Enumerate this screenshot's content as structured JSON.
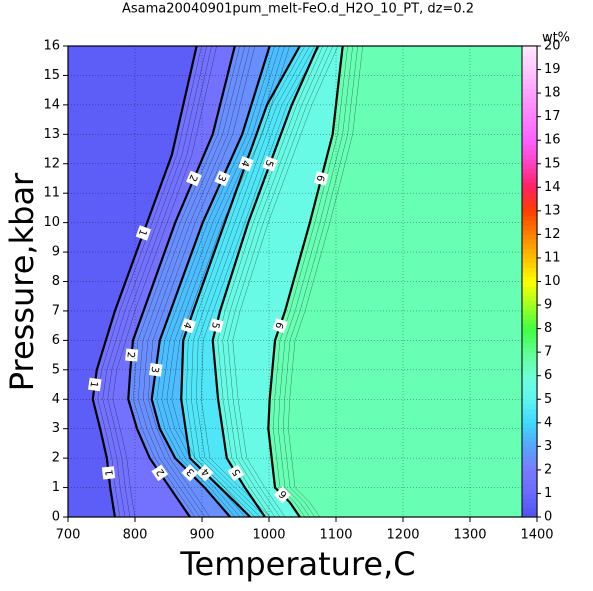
{
  "chart_data": {
    "type": "contour",
    "title": "Asama20040901pum_melt-FeO.d_H2O_10_PT, dz=0.2",
    "x_label": "Temperature,C",
    "y_label": "Pressure,kbar",
    "colorbar_label": "wt%",
    "xlim": [
      700,
      1400
    ],
    "ylim": [
      0,
      16
    ],
    "xticks": [
      700,
      800,
      900,
      1000,
      1100,
      1200,
      1300,
      1400
    ],
    "yticks": [
      0,
      1,
      2,
      3,
      4,
      5,
      6,
      7,
      8,
      9,
      10,
      11,
      12,
      13,
      14,
      15,
      16
    ],
    "zlim": [
      0,
      20
    ],
    "zticks": [
      0,
      1,
      2,
      3,
      4,
      5,
      6,
      7,
      8,
      9,
      10,
      11,
      12,
      13,
      14,
      15,
      16,
      17,
      18,
      19,
      20
    ],
    "colormap": [
      "#5050f0",
      "#6a6aff",
      "#7a7aff",
      "#58a4ff",
      "#40d8ff",
      "#60f4f0",
      "#70ffd8",
      "#60ff90",
      "#40ff40",
      "#a0ff20",
      "#ffff00",
      "#ffc000",
      "#ff8000",
      "#ff4000",
      "#ff2060",
      "#ff40c0",
      "#ff60ff",
      "#ff80ff",
      "#ffa0ff",
      "#ffc8ff",
      "#ffe8ff"
    ],
    "contours": [
      {
        "level": 1,
        "y": [
          16,
          12.3,
          7,
          5,
          4,
          3,
          2,
          1,
          0
        ],
        "x": [
          892,
          855,
          770,
          743,
          737,
          748,
          758,
          763,
          770
        ]
      },
      {
        "level": 2,
        "y": [
          16,
          13,
          10,
          6,
          5,
          4,
          3,
          2,
          1,
          0
        ],
        "x": [
          949,
          916,
          860,
          797,
          793,
          790,
          803,
          822,
          852,
          882
        ]
      },
      {
        "level": 3,
        "y": [
          16,
          13,
          10,
          6,
          4,
          3,
          2,
          1,
          0
        ],
        "x": [
          1001,
          960,
          901,
          837,
          825,
          837,
          860,
          904,
          942
        ]
      },
      {
        "level": 4,
        "y": [
          16,
          14,
          10,
          7,
          6,
          4,
          2,
          1,
          0
        ],
        "x": [
          1046,
          997,
          934,
          887,
          872,
          869,
          882,
          927,
          972
        ]
      },
      {
        "level": 5,
        "y": [
          16,
          14,
          10,
          7,
          6,
          4,
          2,
          1,
          0
        ],
        "x": [
          1073,
          1034,
          969,
          927,
          916,
          924,
          937,
          964,
          994
        ]
      },
      {
        "level": 6,
        "y": [
          16,
          13,
          10,
          7,
          6,
          4,
          3,
          1,
          0.5,
          0
        ],
        "x": [
          1110,
          1095,
          1061,
          1024,
          1009,
          1001,
          999,
          1009,
          1031,
          1046
        ]
      }
    ]
  }
}
